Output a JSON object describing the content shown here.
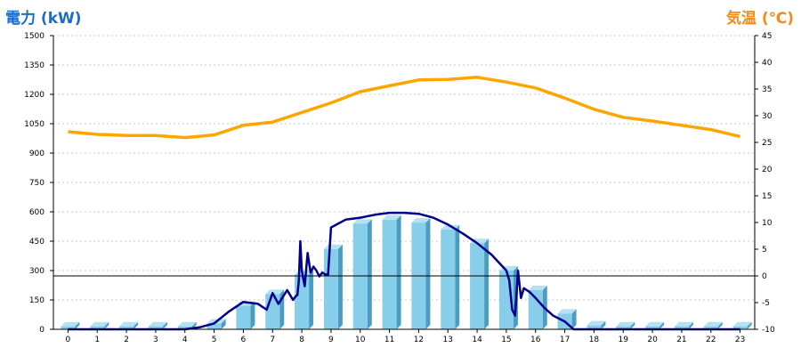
{
  "left_axis_title": "電力 (kW)",
  "right_axis_title": "気温 (℃)",
  "chart_data": {
    "type": "bar",
    "categories": [
      "0",
      "1",
      "2",
      "3",
      "4",
      "5",
      "6",
      "7",
      "8",
      "9",
      "10",
      "11",
      "12",
      "13",
      "14",
      "15",
      "16",
      "17",
      "18",
      "19",
      "20",
      "21",
      "22",
      "23"
    ],
    "series": [
      {
        "type": "bar",
        "axis": "left",
        "values": [
          15,
          15,
          15,
          15,
          15,
          30,
          120,
          180,
          280,
          410,
          540,
          560,
          545,
          510,
          440,
          300,
          200,
          80,
          20,
          15,
          15,
          15,
          15,
          15
        ]
      },
      {
        "type": "line",
        "axis": "left",
        "x": [
          0,
          1,
          2,
          3,
          4,
          4.5,
          5,
          5.5,
          6,
          6.5,
          6.8,
          7,
          7.2,
          7.5,
          7.7,
          7.8,
          7.85,
          7.9,
          7.95,
          8,
          8.1,
          8.2,
          8.3,
          8.4,
          8.5,
          8.6,
          8.7,
          8.8,
          8.9,
          9,
          9.5,
          10,
          10.5,
          11,
          11.5,
          12,
          12.5,
          13,
          13.5,
          14,
          14.5,
          15,
          15.1,
          15.2,
          15.3,
          15.4,
          15.5,
          15.6,
          15.8,
          16,
          16.3,
          16.6,
          17,
          17.3,
          17.6,
          18,
          18.5,
          19,
          20,
          21,
          22,
          23
        ],
        "y": [
          0,
          0,
          0,
          0,
          0,
          10,
          30,
          90,
          140,
          130,
          100,
          185,
          130,
          200,
          150,
          170,
          175,
          250,
          450,
          300,
          220,
          390,
          290,
          320,
          300,
          270,
          290,
          280,
          280,
          520,
          560,
          570,
          585,
          595,
          595,
          590,
          570,
          535,
          490,
          440,
          380,
          300,
          250,
          100,
          70,
          300,
          160,
          210,
          190,
          160,
          110,
          70,
          40,
          0,
          0,
          0,
          0,
          0,
          0,
          0,
          0,
          0
        ]
      },
      {
        "type": "line",
        "axis": "right",
        "x": [
          0,
          1,
          2,
          3,
          4,
          5,
          6,
          7,
          8,
          9,
          10,
          11,
          12,
          13,
          14,
          15,
          16,
          17,
          18,
          19,
          20,
          21,
          22,
          23
        ],
        "y": [
          27,
          26.5,
          26.3,
          26.3,
          25.9,
          26.4,
          28.2,
          28.8,
          30.6,
          32.4,
          34.5,
          35.6,
          36.7,
          36.8,
          37.2,
          36.3,
          35.2,
          33.3,
          31.2,
          29.7,
          29,
          28.2,
          27.4,
          26.1
        ]
      }
    ],
    "ylim": [
      0,
      1500
    ],
    "y_ticks": [
      "0",
      "150",
      "300",
      "450",
      "600",
      "750",
      "900",
      "1050",
      "1200",
      "1350",
      "1500"
    ],
    "y2lim": [
      -10,
      45
    ],
    "y2_ticks": [
      "-10",
      "-5",
      "0",
      "5",
      "10",
      "15",
      "20",
      "25",
      "30",
      "35",
      "40",
      "45"
    ],
    "grid": true,
    "colors": {
      "bars": "#87ceeb",
      "bars_dark": "#4a9cc0",
      "bars_top": "#b5e1f3",
      "power_line": "#00008b",
      "temp_line": "#ffa500",
      "zero_line": "#000000"
    }
  }
}
